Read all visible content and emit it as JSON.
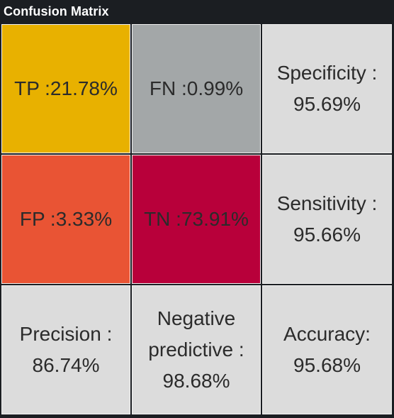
{
  "header": {
    "title": "Confusion Matrix"
  },
  "matrix": {
    "tp": "TP :21.78%",
    "fn": "FN :0.99%",
    "fp": "FP :3.33%",
    "tn": "TN :73.91%"
  },
  "metrics": {
    "specificity_label": "Specificity :",
    "specificity_value": "95.69%",
    "sensitivity_label": "Sensitivity :",
    "sensitivity_value": "95.66%",
    "precision_label": "Precision :",
    "precision_value": "86.74%",
    "npv_label_line1": "Negative",
    "npv_label_line2": "predictive :",
    "npv_value": "98.68%",
    "accuracy_label": "Accuracy:",
    "accuracy_value": "95.68%"
  },
  "colors": {
    "tp": "#e8b100",
    "fn": "#a3a7a8",
    "fp": "#e95434",
    "tn": "#b8003a",
    "metric": "#dcdcdc",
    "background": "#1b1e22"
  }
}
